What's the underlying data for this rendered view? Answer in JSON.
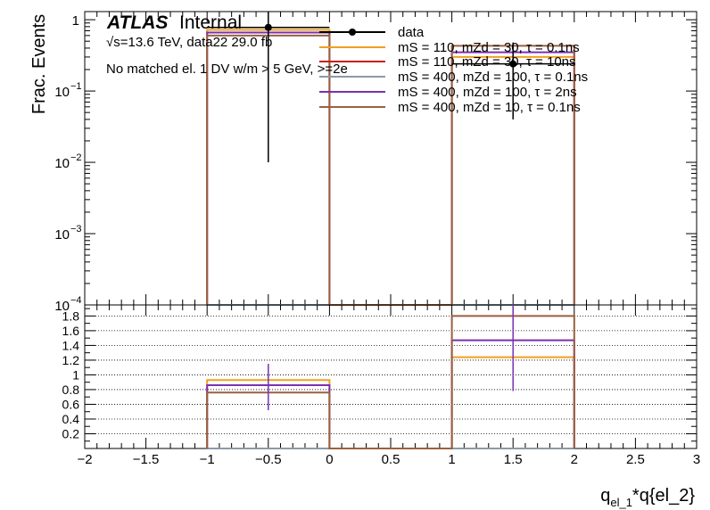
{
  "chart_data": [
    {
      "type": "step-histogram",
      "panel": "main",
      "ylabel": "Frac. Events",
      "yscale": "log",
      "ylim": [
        0.0001,
        1.3
      ],
      "xlim": [
        -2,
        3
      ],
      "y_ticks": [
        {
          "value": 1,
          "label": "1"
        },
        {
          "value": 0.1,
          "label": "10",
          "exp": "−1"
        },
        {
          "value": 0.01,
          "label": "10",
          "exp": "−2"
        },
        {
          "value": 0.001,
          "label": "10",
          "exp": "−3"
        },
        {
          "value": 0.0001,
          "label": "10",
          "exp": "−4"
        }
      ],
      "bin_edges": [
        -1,
        0,
        1,
        2
      ],
      "series": [
        {
          "name": "data",
          "kind": "points",
          "color": "#000000",
          "x": [
            -0.5,
            1.5
          ],
          "y": [
            0.78,
            0.24
          ],
          "yerr_lo": [
            0.77,
            0.2
          ],
          "yerr_hi": [
            0.77,
            0.24
          ]
        },
        {
          "name": "mS = 110, mZd = 30, τ = 0.1ns",
          "kind": "hist",
          "color": "#f0a020",
          "values": [
            0.72,
            0.0001,
            0.3
          ]
        },
        {
          "name": "mS = 110, mZd = 30, τ = 10ns",
          "kind": "hist",
          "color": "#c82010",
          "values": [
            0.0001,
            0.0001,
            0.0001
          ]
        },
        {
          "name": "mS = 400, mZd = 100, τ = 0.1ns",
          "kind": "hist",
          "color": "#8a9aa8",
          "values": [
            0.0001,
            0.0001,
            0.0001
          ]
        },
        {
          "name": "mS = 400, mZd = 100, τ = 2ns",
          "kind": "hist",
          "color": "#7a30b0",
          "values": [
            0.66,
            0.0001,
            0.35
          ]
        },
        {
          "name": "mS = 400, mZd = 10, τ = 0.1ns",
          "kind": "hist",
          "color": "#9a6040",
          "values": [
            0.6,
            0.0001,
            0.43
          ]
        }
      ]
    },
    {
      "type": "step-histogram",
      "panel": "ratio",
      "xlabel": "q_el_1*q{el_2}",
      "ylim": [
        0,
        1.95
      ],
      "xlim": [
        -2,
        3
      ],
      "y_ticks": [
        "0.2",
        "0.4",
        "0.6",
        "0.8",
        "1",
        "1.2",
        "1.4",
        "1.6",
        "1.8"
      ],
      "x_ticks": [
        "−2",
        "−1.5",
        "−1",
        "−0.5",
        "0",
        "0.5",
        "1",
        "1.5",
        "2",
        "2.5",
        "3"
      ],
      "bin_edges": [
        -1,
        0,
        1,
        2
      ],
      "series": [
        {
          "name": "mS = 110, mZd = 30, τ = 0.1ns",
          "color": "#f0a020",
          "values": [
            0.93,
            0,
            1.24
          ]
        },
        {
          "name": "mS = 110, mZd = 30, τ = 10ns",
          "color": "#c82010",
          "values": [
            0,
            0,
            0
          ]
        },
        {
          "name": "mS = 400, mZd = 100, τ = 0.1ns",
          "color": "#8a9aa8",
          "values": [
            0,
            0,
            0
          ]
        },
        {
          "name": "mS = 400, mZd = 100, τ = 2ns",
          "color": "#7a30b0",
          "values": [
            0.86,
            0,
            1.47
          ]
        },
        {
          "name": "mS = 400, mZd = 10, τ = 0.1ns",
          "color": "#9a6040",
          "values": [
            0.76,
            0,
            1.8
          ]
        }
      ],
      "error_bars": [
        {
          "x": -0.5,
          "y": 0.86,
          "lo": 0.52,
          "hi": 1.15,
          "color": "#7a30b0"
        },
        {
          "x": 1.5,
          "y": 1.47,
          "lo": 0.78,
          "hi": 1.95,
          "color": "#7a30b0"
        }
      ]
    }
  ],
  "annotations": {
    "atlas": "ATLAS",
    "internal": "Internal",
    "energy_line": "√s=13.6 TeV, data22 29.0 fb",
    "selection": "No matched el. 1 DV w/m > 5 GeV, >=2e"
  },
  "legend": [
    {
      "label": "data",
      "color": "#000000",
      "marker": "point"
    },
    {
      "label": "mS = 110, mZd = 30, τ = 0.1ns",
      "color": "#f0a020",
      "marker": "line"
    },
    {
      "label": "mS = 110, mZd = 30, τ = 10ns",
      "color": "#c82010",
      "marker": "line"
    },
    {
      "label": "mS = 400, mZd = 100, τ = 0.1ns",
      "color": "#8a9aa8",
      "marker": "line"
    },
    {
      "label": "mS = 400, mZd = 100, τ = 2ns",
      "color": "#7a30b0",
      "marker": "line"
    },
    {
      "label": "mS = 400, mZd = 10, τ = 0.1ns",
      "color": "#9a6040",
      "marker": "line"
    }
  ]
}
